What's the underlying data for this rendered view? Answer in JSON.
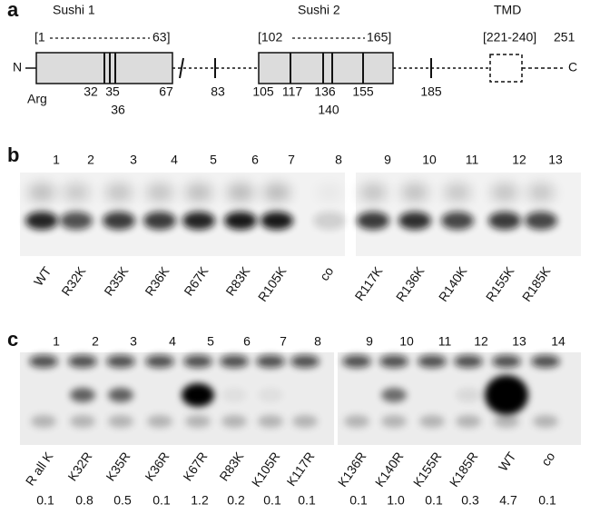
{
  "panel_a": {
    "label": "a",
    "sushi1": "Sushi 1",
    "sushi1_start": "[1",
    "sushi1_end": "63]",
    "sushi2": "Sushi 2",
    "sushi2_start": "[102",
    "sushi2_end": "165]",
    "tmd": "TMD",
    "tmd_range": "[221-240]",
    "length": "251",
    "n_term": "N",
    "c_term": "C",
    "residue": "Arg",
    "positions": [
      "32",
      "35",
      "36",
      "67",
      "83",
      "105",
      "117",
      "136",
      "140",
      "155",
      "185"
    ]
  },
  "panel_b": {
    "label": "b",
    "lanes": [
      "1",
      "2",
      "3",
      "4",
      "5",
      "6",
      "7",
      "8",
      "9",
      "10",
      "11",
      "12",
      "13"
    ],
    "samples": [
      "WT",
      "R32K",
      "R35K",
      "R36K",
      "R67K",
      "R83K",
      "R105K",
      "co",
      "R117K",
      "R136K",
      "R140K",
      "R155K",
      "R185K"
    ]
  },
  "panel_c": {
    "label": "c",
    "lanes": [
      "1",
      "2",
      "3",
      "4",
      "5",
      "6",
      "7",
      "8",
      "9",
      "10",
      "11",
      "12",
      "13",
      "14"
    ],
    "samples": [
      "R all K",
      "K32R",
      "K35R",
      "K36R",
      "K67R",
      "R83K",
      "K105R",
      "K117R",
      "K136R",
      "K140R",
      "K155R",
      "K185R",
      "WT",
      "co"
    ],
    "ratios": [
      "0.1",
      "0.8",
      "0.5",
      "0.1",
      "1.2",
      "0.2",
      "0.1",
      "0.1",
      "0.1",
      "1.0",
      "0.1",
      "0.3",
      "4.7",
      "0.1"
    ]
  }
}
